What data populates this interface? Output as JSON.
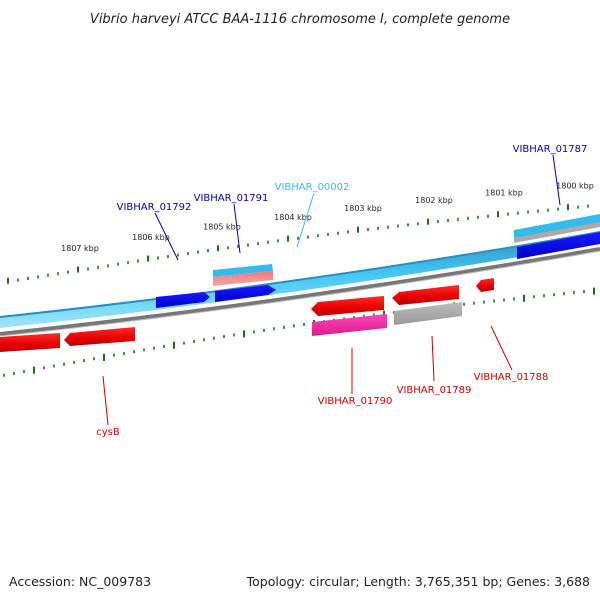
{
  "title": "Vibrio harveyi ATCC BAA-1116 chromosome I, complete genome",
  "footer": {
    "accession": "Accession: NC_009783",
    "stats": "Topology: circular; Length: 3,765,351 bp; Genes: 3,688"
  },
  "ruler_labels": [
    "1807 kbp",
    "1806 kbp",
    "1805 kbp",
    "1804 kbp",
    "1803 kbp",
    "1802 kbp",
    "1801 kbp",
    "1800 kbp"
  ],
  "gene_labels": {
    "g01787": "VIBHAR_01787",
    "g01791": "VIBHAR_01791",
    "g01792": "VIBHAR_01792",
    "g00002": "VIBHAR_00002",
    "g01790": "VIBHAR_01790",
    "g01789": "VIBHAR_01789",
    "g01788": "VIBHAR_01788",
    "cysB": "cysB"
  },
  "colors": {
    "forward_label": "#0000aa",
    "rna_label": "#33bbee",
    "reverse_label": "#cc0000",
    "ruler": "#117711",
    "backbone_blue": "#33bbee",
    "backbone_gray": "#777777"
  }
}
